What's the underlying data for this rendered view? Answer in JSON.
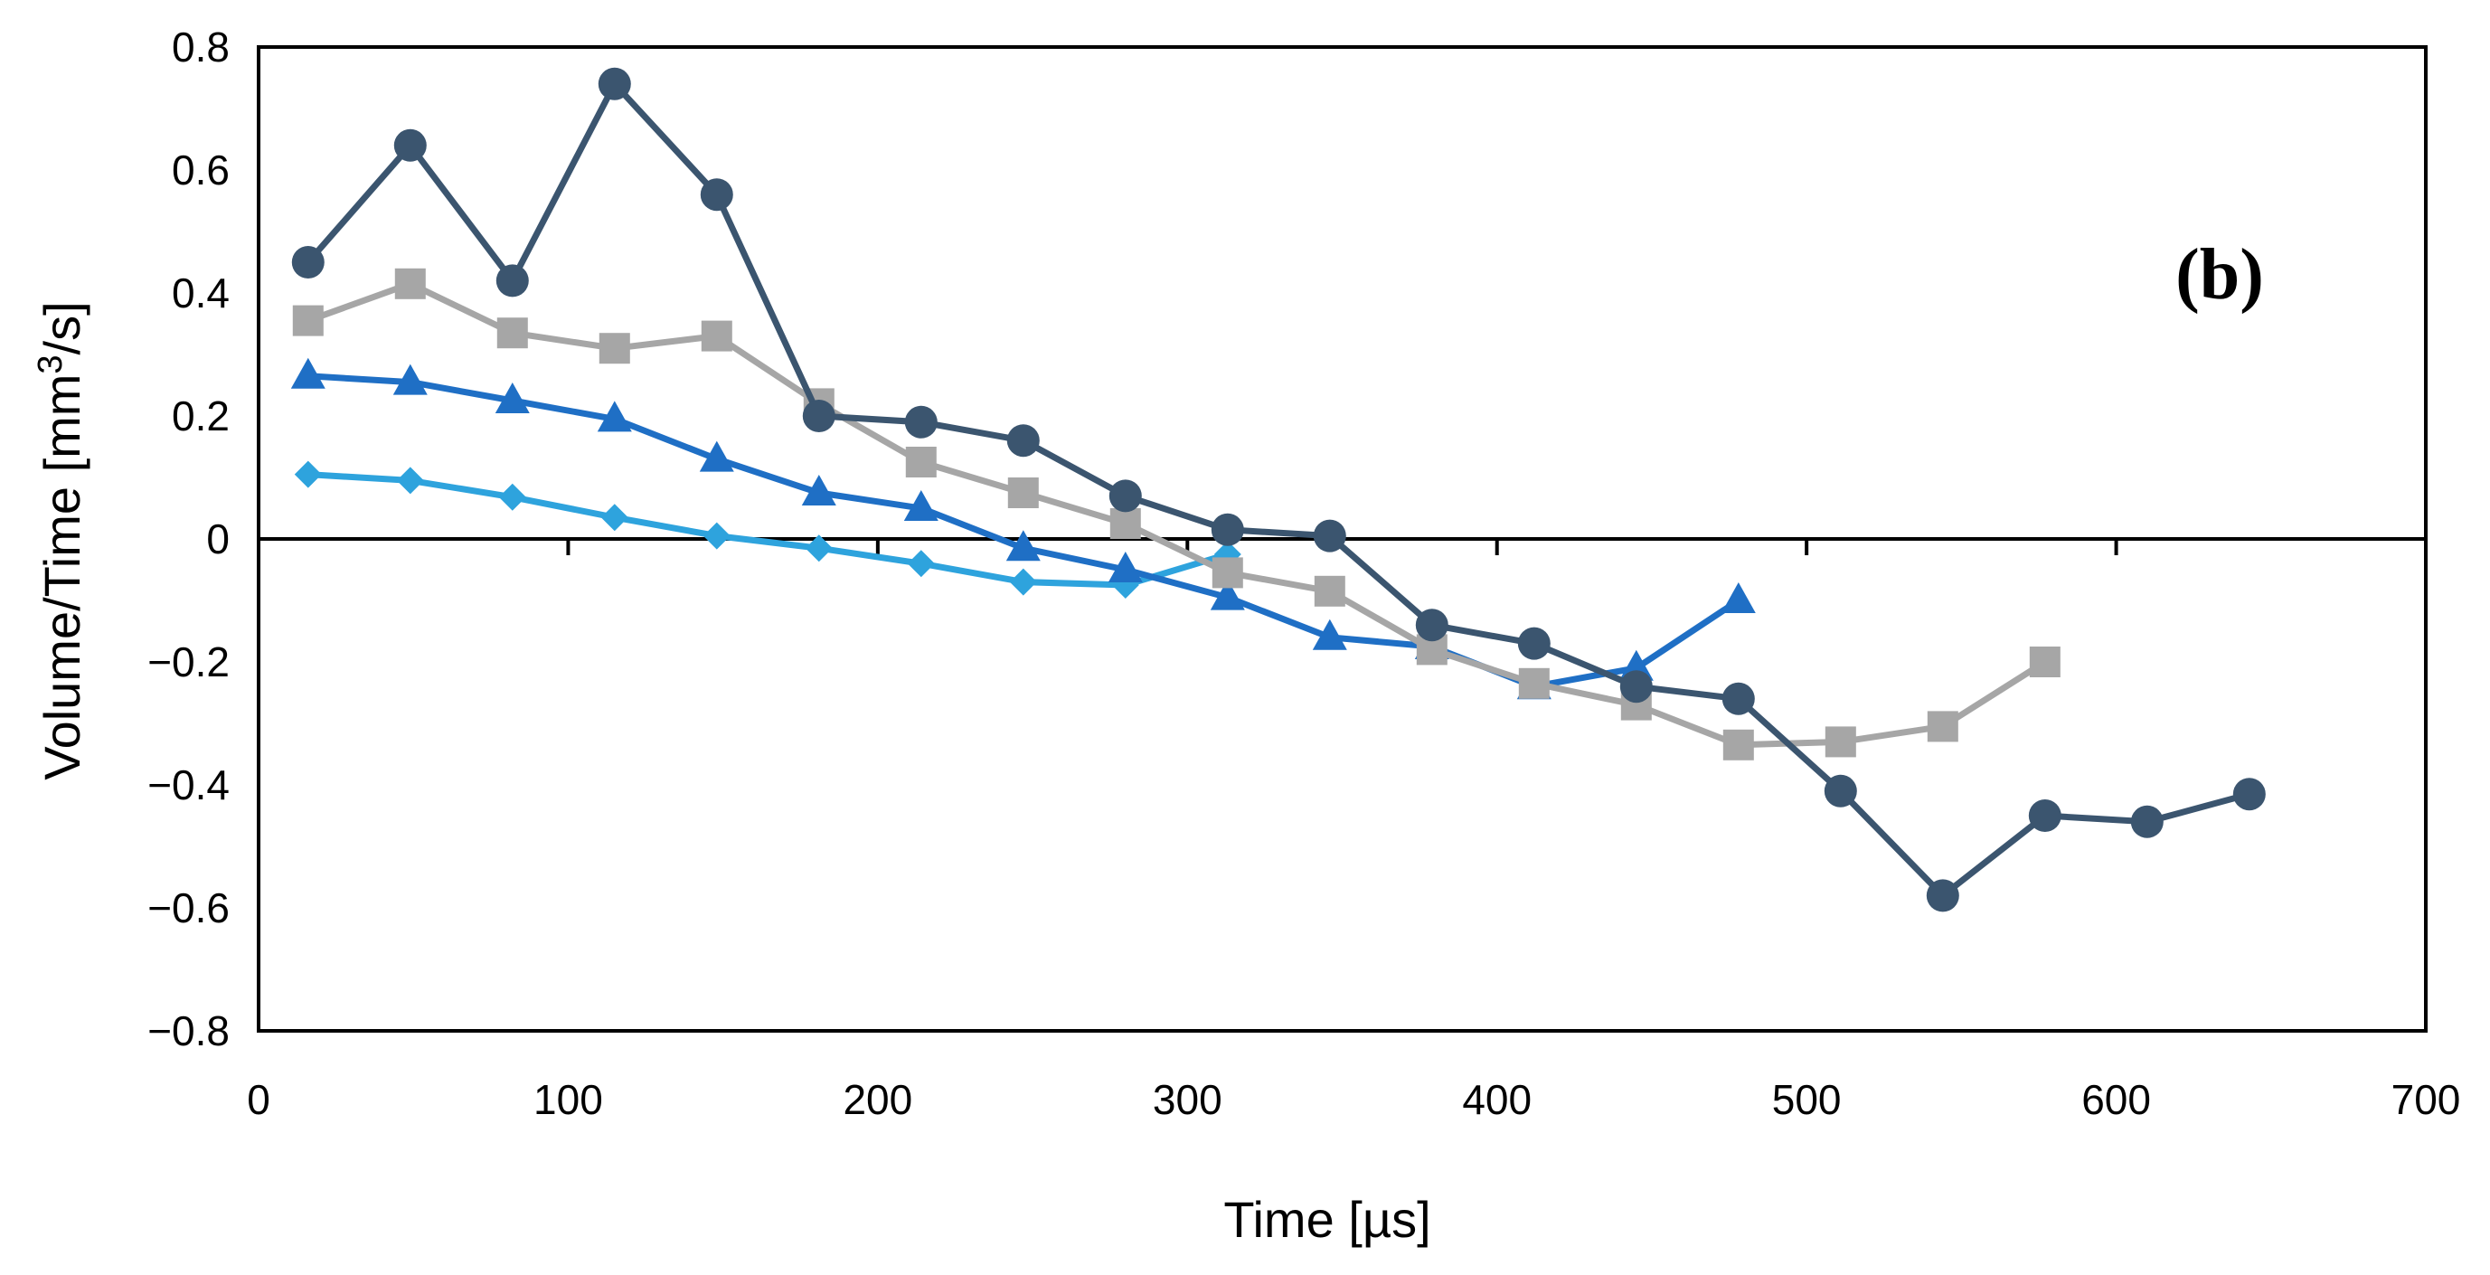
{
  "chart_data": {
    "type": "line",
    "title": "",
    "panel_label": "(b)",
    "xlabel": "Time [µs]",
    "ylabel_main": "Volume/Time [mm",
    "ylabel_sup": "3",
    "ylabel_tail": "/s]",
    "xlim": [
      0,
      700
    ],
    "ylim": [
      -0.8,
      0.8
    ],
    "x_ticks": [
      0,
      100,
      200,
      300,
      400,
      500,
      600,
      700
    ],
    "x_tick_labels": [
      "0",
      "100",
      "200",
      "300",
      "400",
      "500",
      "600",
      "700"
    ],
    "y_ticks": [
      0.8,
      0.6,
      0.4,
      0.2,
      0,
      -0.2,
      -0.4,
      -0.6,
      -0.8
    ],
    "y_tick_labels": [
      "0.8",
      "0.6",
      "0.4",
      "0.2",
      "0",
      "−0.2",
      "−0.4",
      "−0.6",
      "−0.8"
    ],
    "series": [
      {
        "name": "series-1",
        "color": "#3B556F",
        "marker": "circle",
        "x": [
          16,
          49,
          82,
          115,
          148,
          181,
          214,
          247,
          280,
          313,
          346,
          379,
          412,
          445,
          478,
          511,
          544,
          577,
          610,
          643
        ],
        "y": [
          0.45,
          0.64,
          0.42,
          0.74,
          0.56,
          0.2,
          0.19,
          0.16,
          0.07,
          0.015,
          0.005,
          -0.14,
          -0.17,
          -0.24,
          -0.26,
          -0.41,
          -0.58,
          -0.45,
          -0.46,
          -0.415
        ]
      },
      {
        "name": "series-2",
        "color": "#A6A6A6",
        "marker": "square",
        "x": [
          16,
          49,
          82,
          115,
          148,
          181,
          214,
          247,
          280,
          313,
          346,
          379,
          412,
          445,
          478,
          511,
          544,
          577
        ],
        "y": [
          0.355,
          0.415,
          0.335,
          0.31,
          0.33,
          0.22,
          0.125,
          0.075,
          0.025,
          -0.055,
          -0.085,
          -0.18,
          -0.235,
          -0.27,
          -0.335,
          -0.33,
          -0.305,
          -0.2
        ]
      },
      {
        "name": "series-3",
        "color": "#1F6FC5",
        "marker": "triangle",
        "x": [
          16,
          49,
          82,
          115,
          148,
          181,
          214,
          247,
          280,
          313,
          346,
          379,
          412,
          445,
          478
        ],
        "y": [
          0.265,
          0.255,
          0.225,
          0.195,
          0.13,
          0.075,
          0.05,
          -0.015,
          -0.05,
          -0.095,
          -0.16,
          -0.175,
          -0.24,
          -0.21,
          -0.1
        ]
      },
      {
        "name": "series-4",
        "color": "#2EA3DD",
        "marker": "diamond",
        "x": [
          16,
          49,
          82,
          115,
          148,
          181,
          214,
          247,
          280,
          313
        ],
        "y": [
          0.105,
          0.095,
          0.068,
          0.035,
          0.005,
          -0.015,
          -0.04,
          -0.07,
          -0.075,
          -0.025
        ]
      }
    ]
  }
}
